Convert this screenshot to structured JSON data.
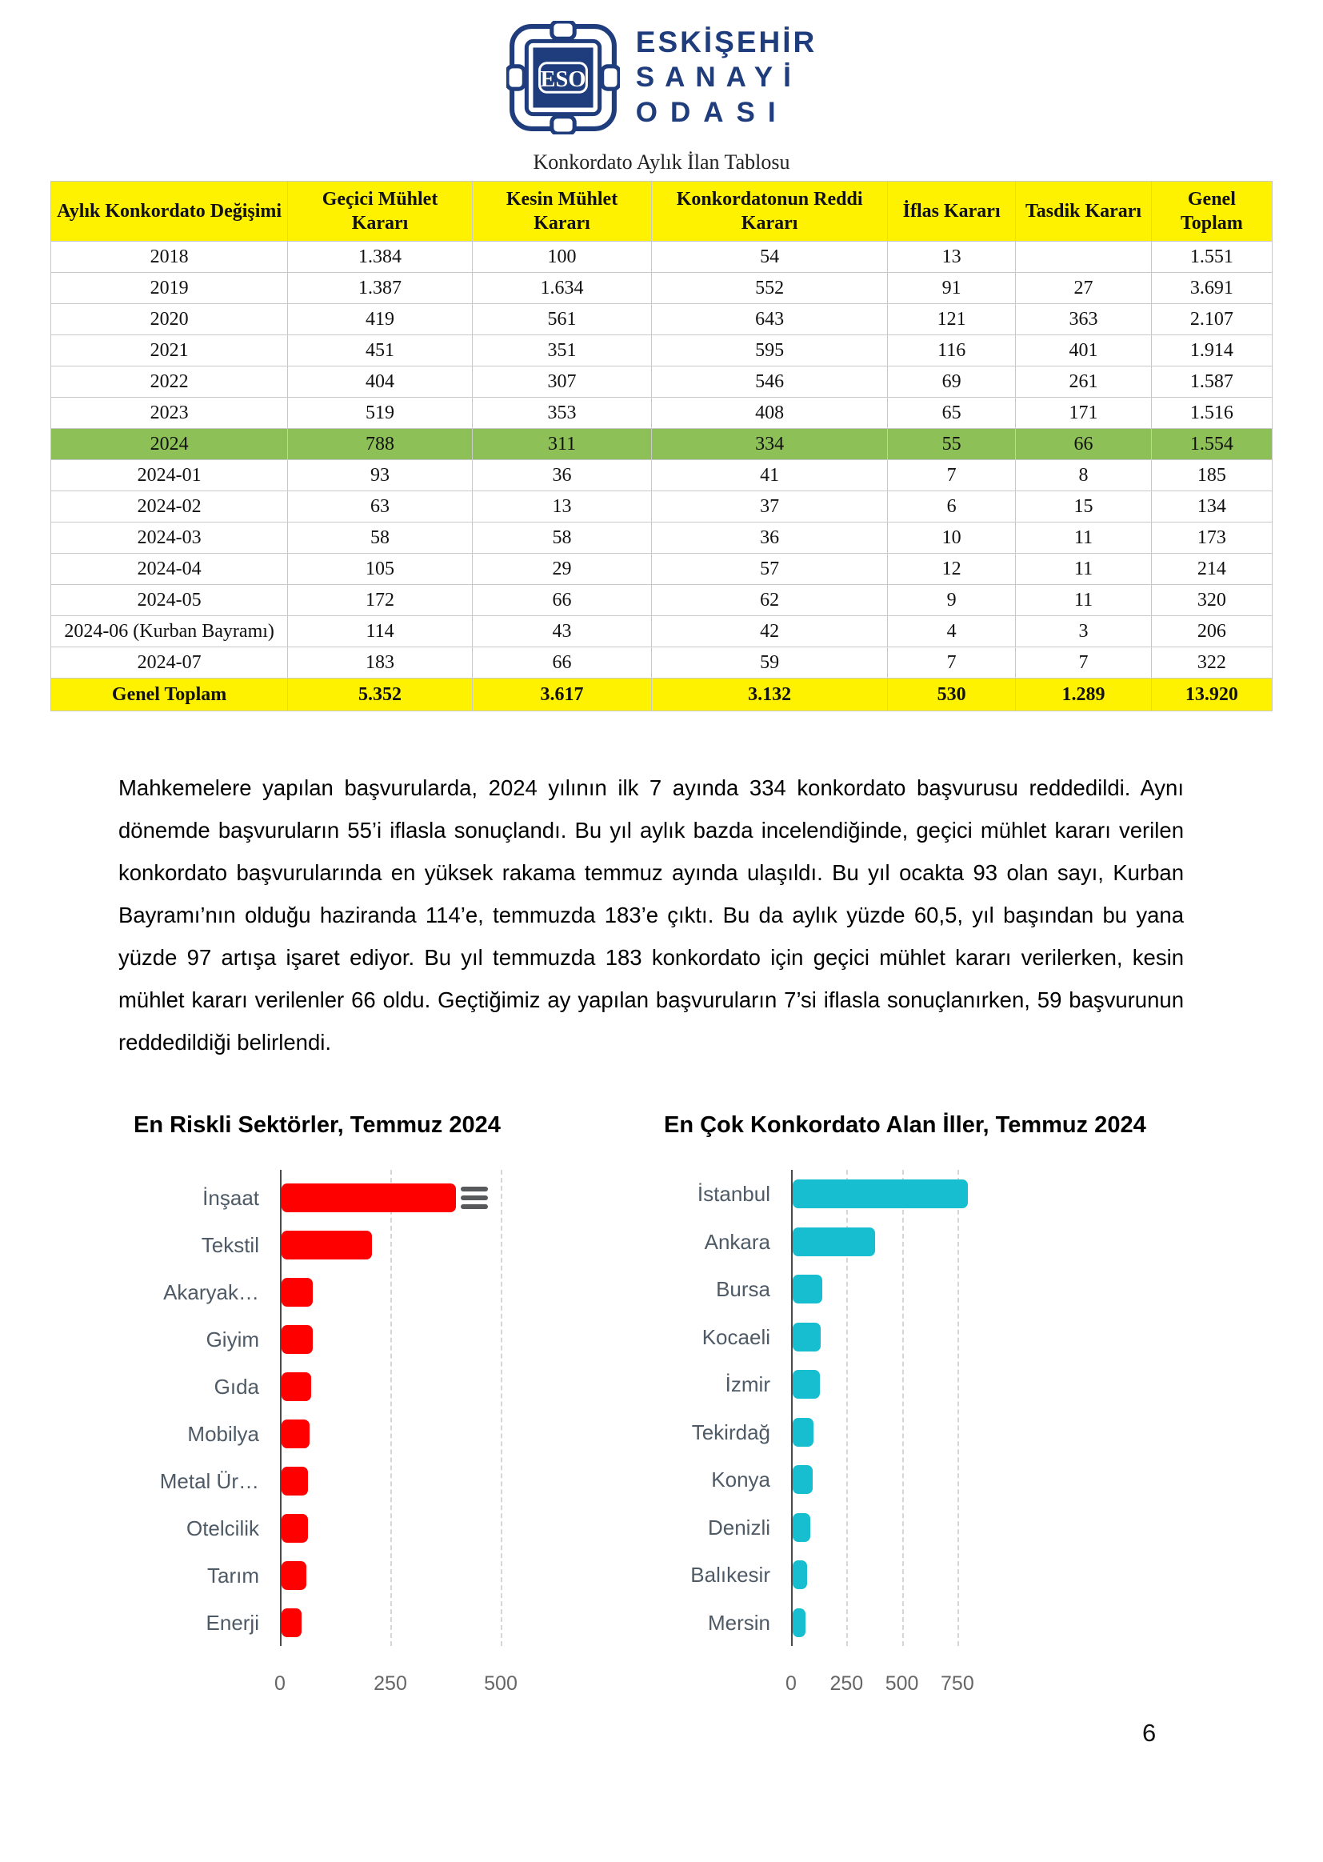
{
  "logo": {
    "acronym": "ESO",
    "line1": "ESKİŞEHİR",
    "line2": "SANAYİ",
    "line3": "ODASI",
    "color": "#1f3d7c"
  },
  "table": {
    "title": "Konkordato Aylık İlan Tablosu",
    "columns": [
      "Aylık Konkordato Değişimi",
      "Geçici Mühlet Kararı",
      "Kesin Mühlet Kararı",
      "Konkordatonun Reddi Kararı",
      "İflas Kararı",
      "Tasdik Kararı",
      "Genel Toplam"
    ],
    "header_bg": "#fff200",
    "green_row_bg": "#8dc057",
    "rows": [
      {
        "label": "2018",
        "values": [
          "1.384",
          "100",
          "54",
          "13",
          "",
          "1.551"
        ],
        "highlight": ""
      },
      {
        "label": "2019",
        "values": [
          "1.387",
          "1.634",
          "552",
          "91",
          "27",
          "3.691"
        ],
        "highlight": ""
      },
      {
        "label": "2020",
        "values": [
          "419",
          "561",
          "643",
          "121",
          "363",
          "2.107"
        ],
        "highlight": ""
      },
      {
        "label": "2021",
        "values": [
          "451",
          "351",
          "595",
          "116",
          "401",
          "1.914"
        ],
        "highlight": ""
      },
      {
        "label": "2022",
        "values": [
          "404",
          "307",
          "546",
          "69",
          "261",
          "1.587"
        ],
        "highlight": ""
      },
      {
        "label": "2023",
        "values": [
          "519",
          "353",
          "408",
          "65",
          "171",
          "1.516"
        ],
        "highlight": ""
      },
      {
        "label": "2024",
        "values": [
          "788",
          "311",
          "334",
          "55",
          "66",
          "1.554"
        ],
        "highlight": "green"
      },
      {
        "label": "2024-01",
        "values": [
          "93",
          "36",
          "41",
          "7",
          "8",
          "185"
        ],
        "highlight": ""
      },
      {
        "label": "2024-02",
        "values": [
          "63",
          "13",
          "37",
          "6",
          "15",
          "134"
        ],
        "highlight": ""
      },
      {
        "label": "2024-03",
        "values": [
          "58",
          "58",
          "36",
          "10",
          "11",
          "173"
        ],
        "highlight": ""
      },
      {
        "label": "2024-04",
        "values": [
          "105",
          "29",
          "57",
          "12",
          "11",
          "214"
        ],
        "highlight": ""
      },
      {
        "label": "2024-05",
        "values": [
          "172",
          "66",
          "62",
          "9",
          "11",
          "320"
        ],
        "highlight": ""
      },
      {
        "label": "2024-06 (Kurban Bayramı)",
        "values": [
          "114",
          "43",
          "42",
          "4",
          "3",
          "206"
        ],
        "highlight": ""
      },
      {
        "label": "2024-07",
        "values": [
          "183",
          "66",
          "59",
          "7",
          "7",
          "322"
        ],
        "highlight": ""
      },
      {
        "label": "Genel Toplam",
        "values": [
          "5.352",
          "3.617",
          "3.132",
          "530",
          "1.289",
          "13.920"
        ],
        "highlight": "total"
      }
    ]
  },
  "paragraph": "Mahkemelere yapılan başvurularda, 2024 yılının ilk 7 ayında 334 konkordato başvurusu reddedildi. Aynı dönemde başvuruların 55’i iflasla sonuçlandı. Bu yıl aylık bazda incelendiğinde, geçici mühlet kararı verilen konkordato başvurularında en yüksek rakama temmuz ayında ulaşıldı. Bu yıl ocakta 93 olan sayı, Kurban Bayramı’nın olduğu haziranda 114’e, temmuzda 183’e çıktı. Bu da aylık yüzde 60,5, yıl başından bu yana yüzde 97 artışa işaret ediyor. Bu yıl temmuzda 183 konkordato için geçici mühlet kararı verilerken, kesin mühlet kararı verilenler 66 oldu. Geçtiğimiz ay yapılan başvuruların 7’si iflasla sonuçlanırken, 59 başvurunun reddedildiği belirlendi.",
  "chart_data": [
    {
      "type": "bar",
      "orientation": "horizontal",
      "title": "En Riskli Sektörler, Temmuz 2024",
      "categories": [
        "İnşaat",
        "Tekstil",
        "Akaryak…",
        "Giyim",
        "Gıda",
        "Mobilya",
        "Metal Ür…",
        "Otelcilik",
        "Tarım",
        "Enerji"
      ],
      "values": [
        395,
        205,
        70,
        70,
        67,
        64,
        60,
        59,
        57,
        45
      ],
      "color": "#fe0000",
      "xticks": [
        0,
        250,
        500
      ],
      "xlim": [
        0,
        520
      ],
      "grid": "dashed-vertical",
      "legend": "none",
      "has_menu_button": true
    },
    {
      "type": "bar",
      "orientation": "horizontal",
      "title": "En Çok Konkordato Alan İller, Temmuz 2024",
      "categories": [
        "İstanbul",
        "Ankara",
        "Bursa",
        "Kocaeli",
        "İzmir",
        "Tekirdağ",
        "Konya",
        "Denizli",
        "Balıkesir",
        "Mersin"
      ],
      "values": [
        790,
        370,
        133,
        128,
        123,
        95,
        90,
        78,
        65,
        58
      ],
      "color": "#17becf",
      "xticks": [
        0,
        250,
        500,
        750
      ],
      "xlim": [
        0,
        1330
      ],
      "grid": "dashed-vertical",
      "legend": "none",
      "has_menu_button": false
    }
  ],
  "page": {
    "number": "6"
  }
}
